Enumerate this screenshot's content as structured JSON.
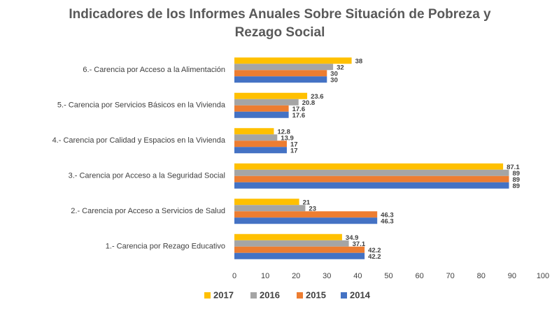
{
  "chart_data": {
    "type": "bar",
    "orientation": "horizontal",
    "title": "Indicadores de los Informes Anuales Sobre Situación de Pobreza y Rezago Social",
    "categories": [
      "1.- Carencia por Rezago Educativo",
      "2.- Carencia por Acceso a Servicios de Salud",
      "3.- Carencia por Acceso a la Seguridad Social",
      "4.- Carencia por Calidad y Espacios en la Vivienda",
      "5.- Carencia por Servicios Básicos en la Vivienda",
      "6.- Carencia por Acceso a la Alimentación"
    ],
    "series": [
      {
        "name": "2017",
        "color": "#ffc000",
        "values": [
          34.9,
          21,
          87.1,
          12.8,
          23.6,
          38
        ]
      },
      {
        "name": "2016",
        "color": "#a5a5a5",
        "values": [
          37.1,
          23,
          89,
          13.9,
          20.8,
          32
        ]
      },
      {
        "name": "2015",
        "color": "#ed7d31",
        "values": [
          42.2,
          46.3,
          89,
          17,
          17.6,
          30
        ]
      },
      {
        "name": "2014",
        "color": "#4472c4",
        "values": [
          42.2,
          46.3,
          89,
          17,
          17.6,
          30
        ]
      }
    ],
    "xlim": [
      0,
      100
    ],
    "xticks": [
      0,
      10,
      20,
      30,
      40,
      50,
      60,
      70,
      80,
      90,
      100
    ],
    "grid": false,
    "legend": "bottom"
  }
}
